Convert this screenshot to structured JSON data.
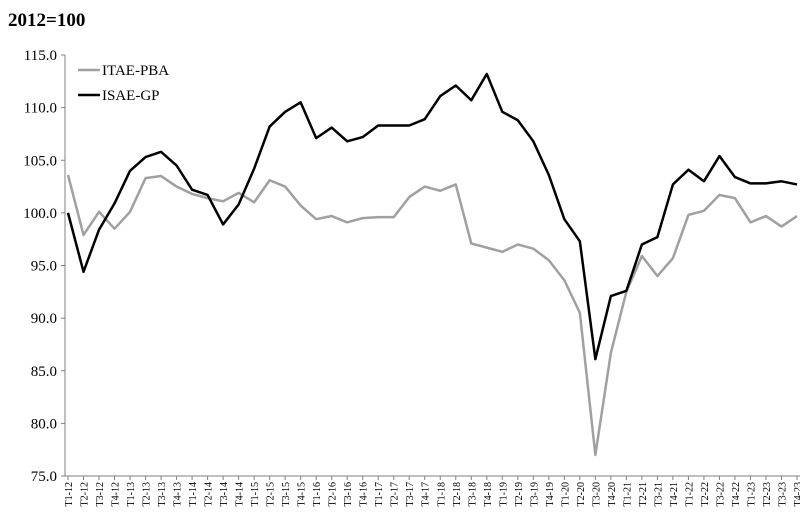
{
  "chart_data": {
    "type": "line",
    "title": "2012=100",
    "categories": [
      "T1-12",
      "T2-12",
      "T3-12",
      "T4-12",
      "T1-13",
      "T2-13",
      "T3-13",
      "T4-13",
      "T1-14",
      "T2-14",
      "T3-14",
      "T4-14",
      "T1-15",
      "T2-15",
      "T3-15",
      "T4-15",
      "T1-16",
      "T2-16",
      "T3-16",
      "T4-16",
      "T1-17",
      "T2-17",
      "T3-17",
      "T4-17",
      "T1-18",
      "T2-18",
      "T3-18",
      "T4-18",
      "T1-19",
      "T2-19",
      "T3-19",
      "T4-19",
      "T1-20",
      "T2-20",
      "T3-20",
      "T4-20",
      "T1-21",
      "T2-21",
      "T3-21",
      "T4-21",
      "T1-22",
      "T2-22",
      "T3-22",
      "T4-22",
      "T1-23",
      "T2-23",
      "T3-23",
      "T4-23"
    ],
    "series": [
      {
        "name": "ITAE-PBA",
        "color": "#a0a0a0",
        "values": [
          103.6,
          97.9,
          100.1,
          98.5,
          100.1,
          103.3,
          103.5,
          102.5,
          101.8,
          101.4,
          101.1,
          101.9,
          101.0,
          103.1,
          102.5,
          100.7,
          99.4,
          99.7,
          99.1,
          99.5,
          99.6,
          99.6,
          101.5,
          102.5,
          102.1,
          102.7,
          97.1,
          96.7,
          96.3,
          97.0,
          96.6,
          95.5,
          93.6,
          90.5,
          77.0,
          86.7,
          92.5,
          95.9,
          94.0,
          95.7,
          99.8,
          100.2,
          101.7,
          101.4,
          99.1,
          99.7,
          98.7,
          99.7
        ]
      },
      {
        "name": "ISAE-GP",
        "color": "#000000",
        "values": [
          100.0,
          94.4,
          98.4,
          100.9,
          104.0,
          105.3,
          105.8,
          104.5,
          102.2,
          101.7,
          98.9,
          100.8,
          104.2,
          108.2,
          109.6,
          110.5,
          107.1,
          108.1,
          106.8,
          107.2,
          108.3,
          108.3,
          108.3,
          108.9,
          111.1,
          112.1,
          110.7,
          113.2,
          109.6,
          108.8,
          106.8,
          103.6,
          99.4,
          97.3,
          86.1,
          92.1,
          92.6,
          97.0,
          97.7,
          102.7,
          104.1,
          103.0,
          105.4,
          103.4,
          102.8,
          102.8,
          103.0,
          102.7
        ]
      }
    ],
    "ylim": [
      75,
      115
    ],
    "yticks": [
      {
        "value": 75,
        "label": "75.0"
      },
      {
        "value": 80,
        "label": "80.0"
      },
      {
        "value": 85,
        "label": "85.0"
      },
      {
        "value": 90,
        "label": "90.0"
      },
      {
        "value": 95,
        "label": "95.0"
      },
      {
        "value": 100,
        "label": "100.0"
      },
      {
        "value": 105,
        "label": "105.0"
      },
      {
        "value": 110,
        "label": "110.0"
      },
      {
        "value": 115,
        "label": "115.0"
      }
    ],
    "grid": false,
    "legend": "top-left"
  }
}
